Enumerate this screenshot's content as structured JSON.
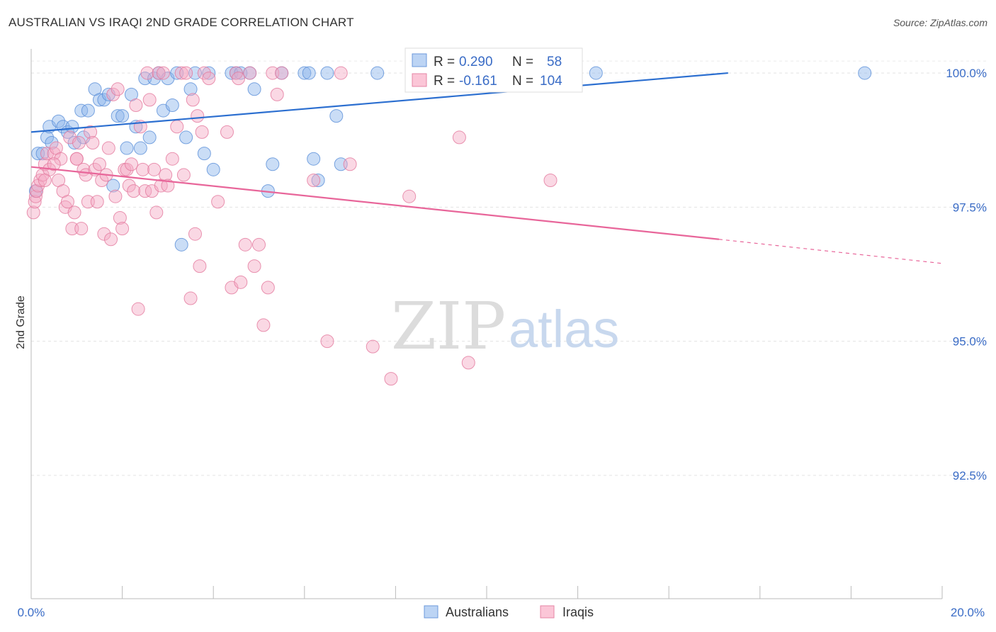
{
  "title": "AUSTRALIAN VS IRAQI 2ND GRADE CORRELATION CHART",
  "source": "Source: ZipAtlas.com",
  "watermark": {
    "zip": "ZIP",
    "atlas": "atlas"
  },
  "chart_data": {
    "type": "scatter",
    "title": "AUSTRALIAN VS IRAQI 2ND GRADE CORRELATION CHART",
    "xlabel": "",
    "ylabel": "2nd Grade",
    "xlim": [
      0,
      20
    ],
    "ylim": [
      90.2,
      100.45
    ],
    "x_tick_labels": [
      "0.0%",
      "20.0%"
    ],
    "y_ticks": [
      92.5,
      95.0,
      97.5,
      100.0
    ],
    "y_tick_labels": [
      "92.5%",
      "95.0%",
      "97.5%",
      "100.0%"
    ],
    "legend": {
      "r_label": "R =",
      "n_label": "N =",
      "entries": [
        {
          "r": "0.290",
          "n": "58"
        },
        {
          "r": "-0.161",
          "n": "104"
        }
      ]
    },
    "series": [
      {
        "name": "Australians",
        "color": "#8ab4ec",
        "edge": "#5a8fd8",
        "line_color": "#2c6fd0",
        "trend": {
          "x0": 0.0,
          "y0": 98.9,
          "x1": 15.3,
          "y1": 100.0,
          "dash_to": 15.3
        },
        "points": [
          [
            0.15,
            98.5
          ],
          [
            0.25,
            98.5
          ],
          [
            0.35,
            98.8
          ],
          [
            0.4,
            99.0
          ],
          [
            0.45,
            98.7
          ],
          [
            0.6,
            99.1
          ],
          [
            0.7,
            99.0
          ],
          [
            0.8,
            98.9
          ],
          [
            0.9,
            99.0
          ],
          [
            0.95,
            98.7
          ],
          [
            1.1,
            99.3
          ],
          [
            1.15,
            98.8
          ],
          [
            1.25,
            99.3
          ],
          [
            1.4,
            99.7
          ],
          [
            1.5,
            99.5
          ],
          [
            1.6,
            99.5
          ],
          [
            1.7,
            99.6
          ],
          [
            1.8,
            97.9
          ],
          [
            1.9,
            99.2
          ],
          [
            2.0,
            99.2
          ],
          [
            2.1,
            98.6
          ],
          [
            2.2,
            99.6
          ],
          [
            2.3,
            99.0
          ],
          [
            2.4,
            98.6
          ],
          [
            2.5,
            99.9
          ],
          [
            2.6,
            98.8
          ],
          [
            2.7,
            99.9
          ],
          [
            2.8,
            100.0
          ],
          [
            2.9,
            99.3
          ],
          [
            3.0,
            99.9
          ],
          [
            3.1,
            99.4
          ],
          [
            3.2,
            100.0
          ],
          [
            3.3,
            96.8
          ],
          [
            3.4,
            98.8
          ],
          [
            3.5,
            99.7
          ],
          [
            3.6,
            100.0
          ],
          [
            3.8,
            98.5
          ],
          [
            3.9,
            100.0
          ],
          [
            4.0,
            98.2
          ],
          [
            4.4,
            100.0
          ],
          [
            4.5,
            100.0
          ],
          [
            4.6,
            100.0
          ],
          [
            4.8,
            100.0
          ],
          [
            4.9,
            99.7
          ],
          [
            5.2,
            97.8
          ],
          [
            5.3,
            98.3
          ],
          [
            5.5,
            100.0
          ],
          [
            6.0,
            100.0
          ],
          [
            6.1,
            100.0
          ],
          [
            6.2,
            98.4
          ],
          [
            6.3,
            98.0
          ],
          [
            6.5,
            100.0
          ],
          [
            6.7,
            99.2
          ],
          [
            6.8,
            98.3
          ],
          [
            7.6,
            100.0
          ],
          [
            12.4,
            100.0
          ],
          [
            18.3,
            100.0
          ],
          [
            0.1,
            97.8
          ]
        ]
      },
      {
        "name": "Iraqis",
        "color": "#f5a9c3",
        "edge": "#e4799d",
        "line_color": "#e8669a",
        "trend": {
          "x0": 0.0,
          "y0": 98.25,
          "x1": 15.1,
          "y1": 96.9,
          "dash_to": 20.0,
          "dash_y": 96.45
        },
        "points": [
          [
            0.05,
            97.4
          ],
          [
            0.08,
            97.6
          ],
          [
            0.1,
            97.7
          ],
          [
            0.12,
            97.8
          ],
          [
            0.15,
            97.9
          ],
          [
            0.2,
            98.0
          ],
          [
            0.25,
            98.1
          ],
          [
            0.3,
            98.3
          ],
          [
            0.35,
            98.5
          ],
          [
            0.4,
            98.2
          ],
          [
            0.5,
            98.5
          ],
          [
            0.55,
            98.6
          ],
          [
            0.6,
            98.0
          ],
          [
            0.65,
            98.4
          ],
          [
            0.7,
            97.8
          ],
          [
            0.75,
            97.5
          ],
          [
            0.8,
            97.6
          ],
          [
            0.85,
            98.8
          ],
          [
            0.9,
            97.1
          ],
          [
            0.95,
            97.4
          ],
          [
            1.0,
            98.4
          ],
          [
            1.05,
            98.7
          ],
          [
            1.1,
            97.1
          ],
          [
            1.15,
            98.2
          ],
          [
            1.2,
            98.1
          ],
          [
            1.25,
            97.6
          ],
          [
            1.3,
            98.9
          ],
          [
            1.35,
            98.7
          ],
          [
            1.4,
            98.2
          ],
          [
            1.45,
            97.6
          ],
          [
            1.5,
            98.3
          ],
          [
            1.55,
            98.0
          ],
          [
            1.6,
            97.0
          ],
          [
            1.65,
            98.1
          ],
          [
            1.7,
            98.6
          ],
          [
            1.75,
            96.9
          ],
          [
            1.8,
            99.6
          ],
          [
            1.85,
            97.7
          ],
          [
            1.9,
            99.7
          ],
          [
            1.95,
            97.3
          ],
          [
            2.0,
            97.1
          ],
          [
            2.05,
            98.2
          ],
          [
            2.1,
            98.2
          ],
          [
            2.15,
            97.9
          ],
          [
            2.2,
            98.3
          ],
          [
            2.25,
            97.8
          ],
          [
            2.3,
            99.4
          ],
          [
            2.35,
            95.6
          ],
          [
            2.4,
            99.0
          ],
          [
            2.45,
            98.2
          ],
          [
            2.5,
            97.8
          ],
          [
            2.55,
            100.0
          ],
          [
            2.6,
            99.5
          ],
          [
            2.65,
            97.8
          ],
          [
            2.7,
            98.2
          ],
          [
            2.75,
            97.4
          ],
          [
            2.8,
            100.0
          ],
          [
            2.85,
            97.9
          ],
          [
            2.9,
            100.0
          ],
          [
            2.95,
            98.1
          ],
          [
            3.0,
            97.9
          ],
          [
            3.1,
            98.4
          ],
          [
            3.2,
            99.0
          ],
          [
            3.3,
            100.0
          ],
          [
            3.35,
            98.1
          ],
          [
            3.4,
            100.0
          ],
          [
            3.5,
            95.8
          ],
          [
            3.55,
            99.5
          ],
          [
            3.6,
            97.0
          ],
          [
            3.65,
            99.2
          ],
          [
            3.7,
            96.4
          ],
          [
            3.75,
            98.9
          ],
          [
            3.8,
            100.0
          ],
          [
            3.9,
            99.9
          ],
          [
            4.1,
            97.6
          ],
          [
            4.3,
            98.9
          ],
          [
            4.4,
            96.0
          ],
          [
            4.5,
            100.0
          ],
          [
            4.55,
            99.9
          ],
          [
            4.6,
            96.1
          ],
          [
            4.7,
            96.8
          ],
          [
            4.8,
            100.0
          ],
          [
            4.9,
            96.4
          ],
          [
            5.0,
            96.8
          ],
          [
            5.1,
            95.3
          ],
          [
            5.2,
            96.0
          ],
          [
            5.3,
            100.0
          ],
          [
            5.4,
            99.6
          ],
          [
            5.5,
            100.0
          ],
          [
            6.2,
            98.0
          ],
          [
            6.5,
            95.0
          ],
          [
            6.8,
            100.0
          ],
          [
            7.0,
            98.3
          ],
          [
            7.5,
            94.9
          ],
          [
            7.9,
            94.3
          ],
          [
            8.3,
            97.7
          ],
          [
            8.5,
            100.0
          ],
          [
            9.4,
            98.8
          ],
          [
            9.6,
            94.6
          ],
          [
            10.4,
            100.0
          ],
          [
            11.4,
            98.0
          ],
          [
            0.5,
            98.3
          ],
          [
            0.3,
            98.0
          ],
          [
            1.0,
            98.4
          ]
        ]
      }
    ]
  }
}
